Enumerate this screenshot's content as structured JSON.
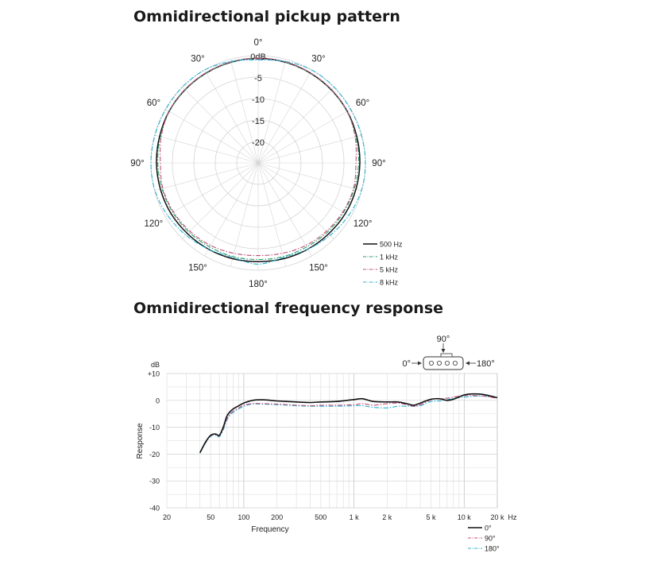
{
  "polar_title": "Omnidirectional pickup pattern",
  "freq_title": "Omnidirectional frequency response",
  "chart_data": [
    {
      "type": "line",
      "subtype": "polar",
      "title": "Omnidirectional pickup pattern",
      "angle_labels": [
        {
          "angle": 0,
          "label": "0°"
        },
        {
          "angle": 30,
          "label": "30°"
        },
        {
          "angle": 60,
          "label": "60°"
        },
        {
          "angle": 90,
          "label": "90°"
        },
        {
          "angle": 120,
          "label": "120°"
        },
        {
          "angle": 150,
          "label": "150°"
        },
        {
          "angle": 180,
          "label": "180°"
        },
        {
          "angle": 210,
          "label": "150°"
        },
        {
          "angle": 240,
          "label": "120°"
        },
        {
          "angle": 270,
          "label": "90°"
        },
        {
          "angle": 300,
          "label": "60°"
        },
        {
          "angle": 330,
          "label": "30°"
        }
      ],
      "radial_ticks": [
        0,
        -5,
        -10,
        -15,
        -20
      ],
      "radial_tick_labels": [
        "0dB",
        "-5",
        "-10",
        "-15",
        "-20"
      ],
      "rlim": [
        -25,
        0
      ],
      "grid": true,
      "legend_position": "bottom-right",
      "angles_deg": [
        0,
        15,
        30,
        45,
        60,
        75,
        90,
        105,
        120,
        135,
        150,
        165,
        180
      ],
      "series": [
        {
          "name": "500 Hz",
          "color": "#111111",
          "dash": "solid",
          "values": [
            -0.6,
            -0.7,
            -0.8,
            -0.9,
            -1.0,
            -1.2,
            -1.3,
            -1.4,
            -1.5,
            -1.7,
            -1.8,
            -1.9,
            -2.0
          ]
        },
        {
          "name": "1 kHz",
          "color": "#2e9c68",
          "dash": "dashdot",
          "values": [
            -0.6,
            -0.7,
            -0.8,
            -0.9,
            -1.1,
            -1.4,
            -1.6,
            -1.8,
            -2.0,
            -2.2,
            -2.4,
            -2.4,
            -2.5
          ]
        },
        {
          "name": "5 kHz",
          "color": "#c2507d",
          "dash": "dashdot",
          "values": [
            -0.6,
            -0.6,
            -0.7,
            -0.8,
            -1.0,
            -1.6,
            -2.2,
            -2.0,
            -2.2,
            -2.5,
            -2.8,
            -3.2,
            -3.4
          ]
        },
        {
          "name": "8 kHz",
          "color": "#2ab0d2",
          "dash": "dashdot",
          "values": [
            -1.0,
            -0.5,
            0.0,
            0.0,
            -0.1,
            -0.1,
            0.0,
            -0.1,
            -0.6,
            -1.2,
            -1.8,
            -2.2,
            -1.4
          ]
        }
      ]
    },
    {
      "type": "line",
      "title": "Omnidirectional frequency response",
      "xlabel": "Frequency",
      "ylabel": "Response",
      "y_unit": "dB",
      "x_unit": "Hz",
      "x_scale": "log",
      "xlim": [
        20,
        20000
      ],
      "ylim": [
        -40,
        10
      ],
      "x_tick_values": [
        20,
        50,
        100,
        200,
        500,
        1000,
        2000,
        5000,
        10000,
        20000
      ],
      "x_tick_labels": [
        "20",
        "50",
        "100",
        "200",
        "500",
        "1 k",
        "2 k",
        "5 k",
        "10 k",
        "20 k"
      ],
      "y_tick_values": [
        10,
        0,
        -10,
        -20,
        -30,
        -40
      ],
      "y_tick_labels": [
        "+10",
        "0",
        "-10",
        "-20",
        "-30",
        "-40"
      ],
      "grid": true,
      "legend_position": "bottom-right",
      "diagram_labels": {
        "front": "0°",
        "side": "90°",
        "rear": "180°"
      },
      "x": [
        40,
        45,
        50,
        55,
        60,
        65,
        70,
        75,
        80,
        90,
        100,
        120,
        150,
        200,
        300,
        400,
        500,
        700,
        1000,
        1200,
        1500,
        2000,
        2500,
        3000,
        3500,
        4000,
        5000,
        6000,
        7000,
        8000,
        10000,
        12000,
        15000,
        20000
      ],
      "series": [
        {
          "name": "0°",
          "color": "#111111",
          "dash": "solid",
          "values": [
            -19.5,
            -15.5,
            -13.0,
            -12.5,
            -13.0,
            -10.0,
            -6.0,
            -4.2,
            -3.2,
            -2.0,
            -1.0,
            0.0,
            0.2,
            -0.2,
            -0.6,
            -0.8,
            -0.6,
            -0.4,
            0.3,
            0.6,
            -0.4,
            -0.6,
            -0.6,
            -1.2,
            -1.8,
            -1.0,
            0.4,
            0.6,
            0.0,
            0.4,
            2.0,
            2.4,
            2.2,
            1.0
          ]
        },
        {
          "name": "90°",
          "color": "#c2507d",
          "dash": "dashdot",
          "values": [
            -19.5,
            -15.7,
            -13.2,
            -12.7,
            -13.2,
            -10.5,
            -7.0,
            -5.0,
            -4.0,
            -2.8,
            -1.8,
            -1.2,
            -1.2,
            -1.4,
            -1.8,
            -2.0,
            -1.8,
            -1.8,
            -1.6,
            -1.2,
            -1.8,
            -1.2,
            -1.0,
            -1.6,
            -2.2,
            -1.6,
            0.2,
            0.6,
            0.8,
            1.2,
            1.8,
            1.8,
            1.6,
            0.8
          ]
        },
        {
          "name": "180°",
          "color": "#2ab0d2",
          "dash": "dashdot",
          "values": [
            -19.7,
            -15.9,
            -13.4,
            -13.0,
            -13.5,
            -11.0,
            -7.5,
            -5.5,
            -4.5,
            -3.2,
            -2.2,
            -1.4,
            -1.4,
            -1.6,
            -2.0,
            -2.2,
            -2.2,
            -2.2,
            -2.0,
            -2.0,
            -2.6,
            -2.8,
            -2.2,
            -2.2,
            -2.2,
            -2.0,
            -0.4,
            -0.2,
            0.2,
            0.8,
            1.2,
            1.5,
            1.6,
            1.0
          ]
        }
      ]
    }
  ]
}
